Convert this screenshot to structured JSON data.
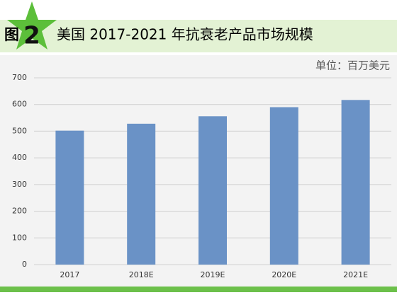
{
  "chart_data": {
    "type": "bar",
    "figure_prefix": "图",
    "figure_number": "2",
    "title": "美国 2017-2021 年抗衰老产品市场规模",
    "unit_label": "单位：百万美元",
    "categories": [
      "2017",
      "2018E",
      "2019E",
      "2020E",
      "2021E"
    ],
    "values": [
      502,
      528,
      556,
      590,
      617
    ],
    "color": "#6a92c6",
    "ylim": [
      0,
      700
    ],
    "yticks": [
      0,
      100,
      200,
      300,
      400,
      500,
      600,
      700
    ],
    "grid": true
  }
}
